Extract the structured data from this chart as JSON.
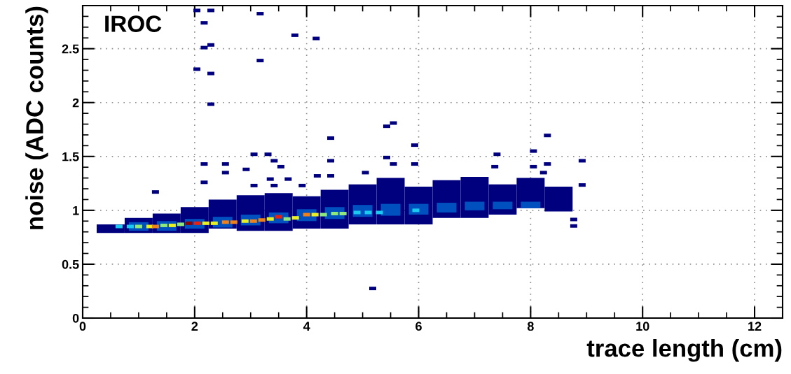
{
  "chart_data": {
    "type": "scatter",
    "xlabel": "trace length (cm)",
    "ylabel": "noise (ADC counts)",
    "annotations": [
      "IROC"
    ],
    "xlim": [
      0,
      12.5
    ],
    "ylim": [
      0,
      2.9
    ],
    "xticks": [
      0,
      2,
      4,
      6,
      8,
      10,
      12
    ],
    "yticks": [
      0,
      0.5,
      1,
      1.5,
      2,
      2.5
    ],
    "grid": true,
    "series": [
      {
        "type": "bar",
        "color": "#00007f",
        "x": [
          0.5,
          1,
          1.5,
          2,
          2.5,
          3,
          3.5,
          4,
          4.5,
          5,
          5.5,
          6,
          6.5,
          7,
          7.5,
          8,
          8.5
        ],
        "base": [
          0.79,
          0.79,
          0.79,
          0.79,
          0.83,
          0.81,
          0.81,
          0.83,
          0.83,
          0.87,
          0.87,
          0.87,
          0.93,
          0.93,
          0.96,
          1.02,
          0.99
        ],
        "values": [
          0.08,
          0.14,
          0.18,
          0.24,
          0.27,
          0.33,
          0.35,
          0.3,
          0.36,
          0.37,
          0.43,
          0.35,
          0.35,
          0.38,
          0.28,
          0.28,
          0.23
        ]
      },
      {
        "type": "bar",
        "color": "#0050c0",
        "x": [
          1,
          1.5,
          2,
          2.5,
          3,
          3.5,
          4,
          4.5,
          5,
          5.5,
          6,
          6.5,
          7,
          7.5,
          8
        ],
        "base": [
          0.81,
          0.81,
          0.83,
          0.84,
          0.86,
          0.88,
          0.9,
          0.92,
          0.94,
          0.95,
          0.96,
          0.98,
          1.0,
          1.01,
          1.02
        ],
        "values": [
          0.08,
          0.09,
          0.09,
          0.1,
          0.1,
          0.1,
          0.11,
          0.11,
          0.11,
          0.11,
          0.1,
          0.09,
          0.08,
          0.07,
          0.06
        ]
      },
      {
        "marker": "square",
        "x": [
          0.65,
          0.85,
          1.0,
          1.2,
          1.3,
          1.45,
          1.6,
          1.75,
          1.9,
          2.05,
          2.2,
          2.35,
          2.55,
          2.7,
          2.9,
          3.05,
          3.2,
          3.35,
          3.5,
          3.65,
          3.8,
          4.0,
          4.15,
          4.3,
          4.5,
          4.65,
          4.9,
          5.1,
          5.3,
          5.95
        ],
        "values": [
          0.85,
          0.85,
          0.85,
          0.85,
          0.85,
          0.86,
          0.86,
          0.87,
          0.88,
          0.88,
          0.88,
          0.88,
          0.89,
          0.89,
          0.9,
          0.9,
          0.91,
          0.92,
          0.94,
          0.92,
          0.93,
          0.96,
          0.96,
          0.96,
          0.97,
          0.97,
          0.98,
          0.98,
          0.98,
          1.0
        ],
        "colors": [
          "#1ac8f0",
          "#1ac8f0",
          "#8ee87a",
          "#e8f020",
          "#f08018",
          "#8ee87a",
          "#e8f020",
          "#8ee87a",
          "#8b0000",
          "#e82010",
          "#e8f020",
          "#e8f020",
          "#f08018",
          "#f08018",
          "#e8f020",
          "#f08018",
          "#f08018",
          "#e8f020",
          "#e82010",
          "#8ee87a",
          "#e8f020",
          "#f08018",
          "#e8f020",
          "#8ee87a",
          "#8ee87a",
          "#8ee87a",
          "#1ac8f0",
          "#1ac8f0",
          "#1ac8f0",
          "#1ac8f0"
        ]
      },
      {
        "marker": "square",
        "color": "#00007f",
        "x": [
          2.04,
          2.29,
          3.17,
          2.17,
          3.79,
          4.17,
          2.29,
          2.17,
          3.17,
          2.04,
          2.29,
          2.29,
          5.43,
          5.55,
          4.43,
          8.3,
          5.93,
          8.05,
          7.4,
          4.43,
          5.43,
          5.55,
          5.93,
          8.92,
          8.05,
          7.36,
          8.3,
          8.23,
          5.05,
          4.43,
          8.92,
          8.77,
          8.77,
          5.18,
          3.06,
          3.31,
          2.17,
          2.55,
          3.42,
          2.92,
          3.54,
          2.55,
          4.19,
          3.35,
          3.67,
          2.17,
          3.06,
          3.42,
          3.92,
          1.3
        ],
        "values": [
          2.855,
          2.855,
          2.825,
          2.74,
          2.625,
          2.595,
          2.535,
          2.51,
          2.39,
          2.31,
          2.27,
          1.985,
          1.78,
          1.81,
          1.67,
          1.695,
          1.605,
          1.55,
          1.52,
          1.46,
          1.49,
          1.43,
          1.43,
          1.46,
          1.405,
          1.405,
          1.43,
          1.35,
          1.35,
          1.32,
          1.235,
          0.915,
          0.855,
          0.275,
          1.52,
          1.52,
          1.43,
          1.43,
          1.46,
          1.38,
          1.405,
          1.35,
          1.32,
          1.29,
          1.29,
          1.26,
          1.23,
          1.23,
          1.23,
          1.17
        ]
      }
    ]
  }
}
